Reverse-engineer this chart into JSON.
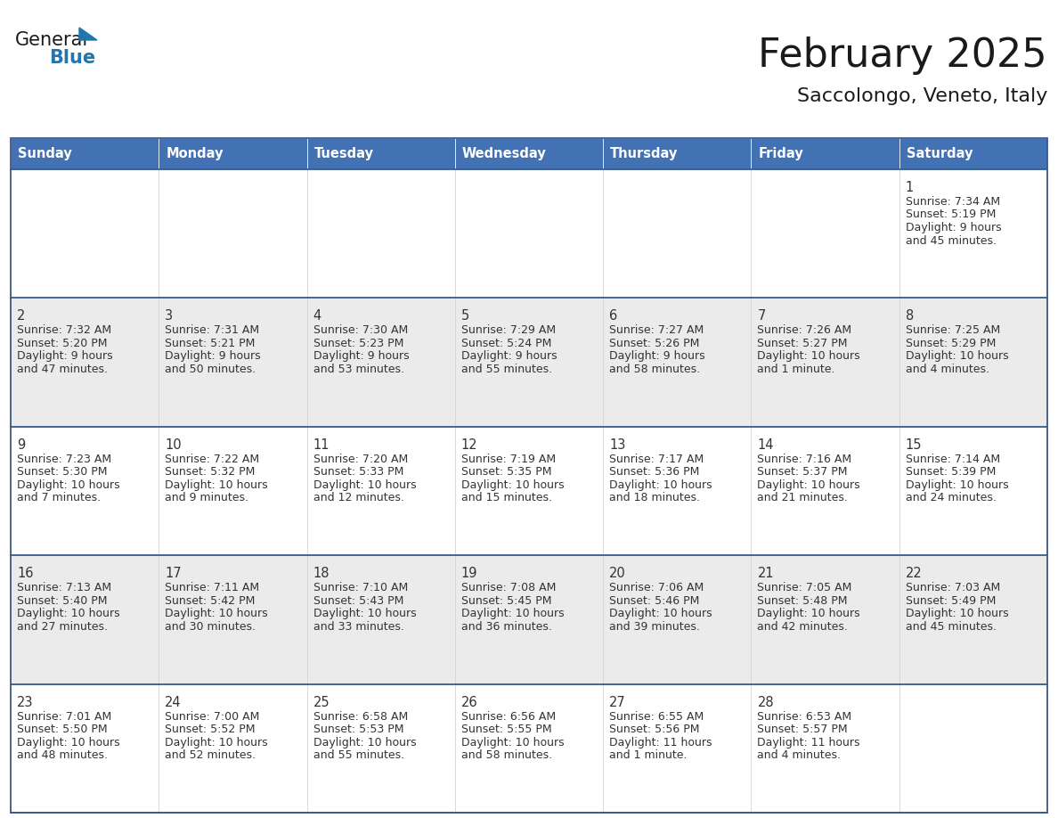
{
  "title": "February 2025",
  "subtitle": "Saccolongo, Veneto, Italy",
  "header_color": "#4372B4",
  "header_text_color": "#FFFFFF",
  "background_color": "#FFFFFF",
  "cell_bg_white": "#FFFFFF",
  "cell_bg_gray": "#EBEBEB",
  "border_color": "#3A5A8C",
  "text_color": "#333333",
  "day_names": [
    "Sunday",
    "Monday",
    "Tuesday",
    "Wednesday",
    "Thursday",
    "Friday",
    "Saturday"
  ],
  "days": [
    {
      "day": 1,
      "col": 6,
      "row": 0,
      "sunrise": "7:34 AM",
      "sunset": "5:19 PM",
      "daylight_a": "9 hours",
      "daylight_b": "and 45 minutes."
    },
    {
      "day": 2,
      "col": 0,
      "row": 1,
      "sunrise": "7:32 AM",
      "sunset": "5:20 PM",
      "daylight_a": "9 hours",
      "daylight_b": "and 47 minutes."
    },
    {
      "day": 3,
      "col": 1,
      "row": 1,
      "sunrise": "7:31 AM",
      "sunset": "5:21 PM",
      "daylight_a": "9 hours",
      "daylight_b": "and 50 minutes."
    },
    {
      "day": 4,
      "col": 2,
      "row": 1,
      "sunrise": "7:30 AM",
      "sunset": "5:23 PM",
      "daylight_a": "9 hours",
      "daylight_b": "and 53 minutes."
    },
    {
      "day": 5,
      "col": 3,
      "row": 1,
      "sunrise": "7:29 AM",
      "sunset": "5:24 PM",
      "daylight_a": "9 hours",
      "daylight_b": "and 55 minutes."
    },
    {
      "day": 6,
      "col": 4,
      "row": 1,
      "sunrise": "7:27 AM",
      "sunset": "5:26 PM",
      "daylight_a": "9 hours",
      "daylight_b": "and 58 minutes."
    },
    {
      "day": 7,
      "col": 5,
      "row": 1,
      "sunrise": "7:26 AM",
      "sunset": "5:27 PM",
      "daylight_a": "10 hours",
      "daylight_b": "and 1 minute."
    },
    {
      "day": 8,
      "col": 6,
      "row": 1,
      "sunrise": "7:25 AM",
      "sunset": "5:29 PM",
      "daylight_a": "10 hours",
      "daylight_b": "and 4 minutes."
    },
    {
      "day": 9,
      "col": 0,
      "row": 2,
      "sunrise": "7:23 AM",
      "sunset": "5:30 PM",
      "daylight_a": "10 hours",
      "daylight_b": "and 7 minutes."
    },
    {
      "day": 10,
      "col": 1,
      "row": 2,
      "sunrise": "7:22 AM",
      "sunset": "5:32 PM",
      "daylight_a": "10 hours",
      "daylight_b": "and 9 minutes."
    },
    {
      "day": 11,
      "col": 2,
      "row": 2,
      "sunrise": "7:20 AM",
      "sunset": "5:33 PM",
      "daylight_a": "10 hours",
      "daylight_b": "and 12 minutes."
    },
    {
      "day": 12,
      "col": 3,
      "row": 2,
      "sunrise": "7:19 AM",
      "sunset": "5:35 PM",
      "daylight_a": "10 hours",
      "daylight_b": "and 15 minutes."
    },
    {
      "day": 13,
      "col": 4,
      "row": 2,
      "sunrise": "7:17 AM",
      "sunset": "5:36 PM",
      "daylight_a": "10 hours",
      "daylight_b": "and 18 minutes."
    },
    {
      "day": 14,
      "col": 5,
      "row": 2,
      "sunrise": "7:16 AM",
      "sunset": "5:37 PM",
      "daylight_a": "10 hours",
      "daylight_b": "and 21 minutes."
    },
    {
      "day": 15,
      "col": 6,
      "row": 2,
      "sunrise": "7:14 AM",
      "sunset": "5:39 PM",
      "daylight_a": "10 hours",
      "daylight_b": "and 24 minutes."
    },
    {
      "day": 16,
      "col": 0,
      "row": 3,
      "sunrise": "7:13 AM",
      "sunset": "5:40 PM",
      "daylight_a": "10 hours",
      "daylight_b": "and 27 minutes."
    },
    {
      "day": 17,
      "col": 1,
      "row": 3,
      "sunrise": "7:11 AM",
      "sunset": "5:42 PM",
      "daylight_a": "10 hours",
      "daylight_b": "and 30 minutes."
    },
    {
      "day": 18,
      "col": 2,
      "row": 3,
      "sunrise": "7:10 AM",
      "sunset": "5:43 PM",
      "daylight_a": "10 hours",
      "daylight_b": "and 33 minutes."
    },
    {
      "day": 19,
      "col": 3,
      "row": 3,
      "sunrise": "7:08 AM",
      "sunset": "5:45 PM",
      "daylight_a": "10 hours",
      "daylight_b": "and 36 minutes."
    },
    {
      "day": 20,
      "col": 4,
      "row": 3,
      "sunrise": "7:06 AM",
      "sunset": "5:46 PM",
      "daylight_a": "10 hours",
      "daylight_b": "and 39 minutes."
    },
    {
      "day": 21,
      "col": 5,
      "row": 3,
      "sunrise": "7:05 AM",
      "sunset": "5:48 PM",
      "daylight_a": "10 hours",
      "daylight_b": "and 42 minutes."
    },
    {
      "day": 22,
      "col": 6,
      "row": 3,
      "sunrise": "7:03 AM",
      "sunset": "5:49 PM",
      "daylight_a": "10 hours",
      "daylight_b": "and 45 minutes."
    },
    {
      "day": 23,
      "col": 0,
      "row": 4,
      "sunrise": "7:01 AM",
      "sunset": "5:50 PM",
      "daylight_a": "10 hours",
      "daylight_b": "and 48 minutes."
    },
    {
      "day": 24,
      "col": 1,
      "row": 4,
      "sunrise": "7:00 AM",
      "sunset": "5:52 PM",
      "daylight_a": "10 hours",
      "daylight_b": "and 52 minutes."
    },
    {
      "day": 25,
      "col": 2,
      "row": 4,
      "sunrise": "6:58 AM",
      "sunset": "5:53 PM",
      "daylight_a": "10 hours",
      "daylight_b": "and 55 minutes."
    },
    {
      "day": 26,
      "col": 3,
      "row": 4,
      "sunrise": "6:56 AM",
      "sunset": "5:55 PM",
      "daylight_a": "10 hours",
      "daylight_b": "and 58 minutes."
    },
    {
      "day": 27,
      "col": 4,
      "row": 4,
      "sunrise": "6:55 AM",
      "sunset": "5:56 PM",
      "daylight_a": "11 hours",
      "daylight_b": "and 1 minute."
    },
    {
      "day": 28,
      "col": 5,
      "row": 4,
      "sunrise": "6:53 AM",
      "sunset": "5:57 PM",
      "daylight_a": "11 hours",
      "daylight_b": "and 4 minutes."
    }
  ],
  "num_rows": 5,
  "logo_triangle_color": "#2176AE",
  "logo_general_color": "#1A1A1A",
  "logo_blue_color": "#2176AE",
  "title_color": "#1A1A1A",
  "subtitle_color": "#1A1A1A"
}
